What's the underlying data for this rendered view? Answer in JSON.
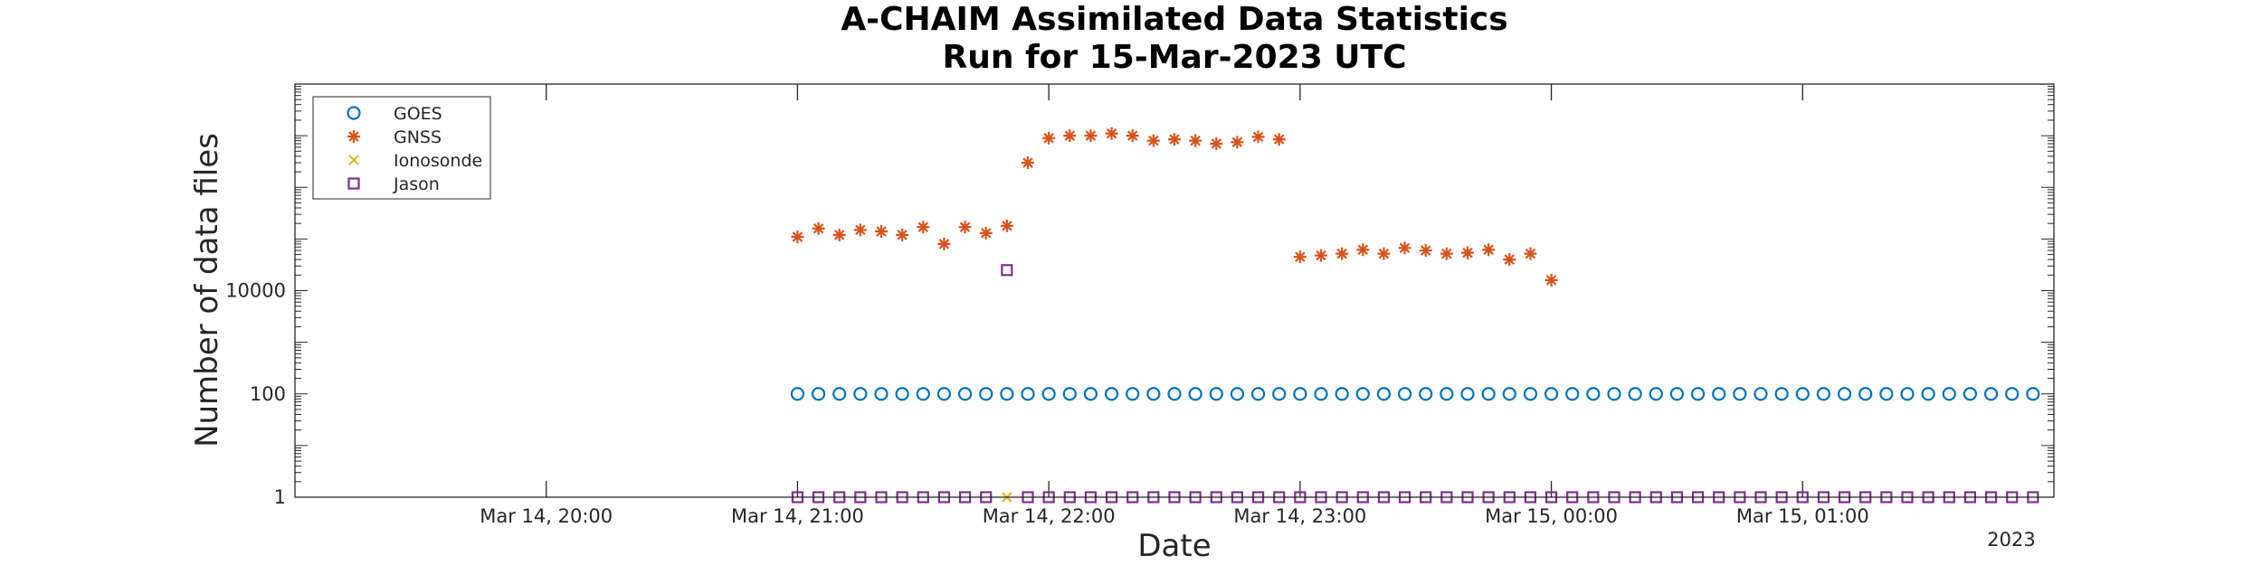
{
  "chart_data": {
    "type": "scatter",
    "title": "A-CHAIM Assimilated Data Statistics",
    "subtitle": "Run for 15-Mar-2023 UTC",
    "xlabel": "Date",
    "ylabel": "Number of data files",
    "x_secondary_label": "2023",
    "y_scale": "log",
    "y_ticks": [
      {
        "value": 1,
        "label": "1"
      },
      {
        "value": 100,
        "label": "100"
      },
      {
        "value": 10000,
        "label": "10000"
      }
    ],
    "x_ticks": [
      {
        "value": "2023-03-14 20:00",
        "label": "Mar 14, 20:00"
      },
      {
        "value": "2023-03-14 21:00",
        "label": "Mar 14, 21:00"
      },
      {
        "value": "2023-03-14 22:00",
        "label": "Mar 14, 22:00"
      },
      {
        "value": "2023-03-14 23:00",
        "label": "Mar 14, 23:00"
      },
      {
        "value": "2023-03-15 00:00",
        "label": "Mar 15, 00:00"
      },
      {
        "value": "2023-03-15 01:00",
        "label": "Mar 15, 01:00"
      }
    ],
    "xlim": [
      "2023-03-14 19:00",
      "2023-03-15 02:00"
    ],
    "ylim": [
      1,
      100000000
    ],
    "grid": false,
    "legend_position": "top-left",
    "series": [
      {
        "name": "GOES",
        "marker": "circle",
        "color": "#0072BD",
        "points": [
          {
            "x": "2023-03-14 21:00",
            "y": 100
          },
          {
            "x": "2023-03-14 21:05",
            "y": 100
          },
          {
            "x": "2023-03-14 21:10",
            "y": 100
          },
          {
            "x": "2023-03-14 21:15",
            "y": 100
          },
          {
            "x": "2023-03-14 21:20",
            "y": 100
          },
          {
            "x": "2023-03-14 21:25",
            "y": 100
          },
          {
            "x": "2023-03-14 21:30",
            "y": 100
          },
          {
            "x": "2023-03-14 21:35",
            "y": 100
          },
          {
            "x": "2023-03-14 21:40",
            "y": 100
          },
          {
            "x": "2023-03-14 21:45",
            "y": 100
          },
          {
            "x": "2023-03-14 21:50",
            "y": 100
          },
          {
            "x": "2023-03-14 21:55",
            "y": 100
          },
          {
            "x": "2023-03-14 22:00",
            "y": 100
          },
          {
            "x": "2023-03-14 22:05",
            "y": 100
          },
          {
            "x": "2023-03-14 22:10",
            "y": 100
          },
          {
            "x": "2023-03-14 22:15",
            "y": 100
          },
          {
            "x": "2023-03-14 22:20",
            "y": 100
          },
          {
            "x": "2023-03-14 22:25",
            "y": 100
          },
          {
            "x": "2023-03-14 22:30",
            "y": 100
          },
          {
            "x": "2023-03-14 22:35",
            "y": 100
          },
          {
            "x": "2023-03-14 22:40",
            "y": 100
          },
          {
            "x": "2023-03-14 22:45",
            "y": 100
          },
          {
            "x": "2023-03-14 22:50",
            "y": 100
          },
          {
            "x": "2023-03-14 22:55",
            "y": 100
          },
          {
            "x": "2023-03-14 23:00",
            "y": 100
          },
          {
            "x": "2023-03-14 23:05",
            "y": 100
          },
          {
            "x": "2023-03-14 23:10",
            "y": 100
          },
          {
            "x": "2023-03-14 23:15",
            "y": 100
          },
          {
            "x": "2023-03-14 23:20",
            "y": 100
          },
          {
            "x": "2023-03-14 23:25",
            "y": 100
          },
          {
            "x": "2023-03-14 23:30",
            "y": 100
          },
          {
            "x": "2023-03-14 23:35",
            "y": 100
          },
          {
            "x": "2023-03-14 23:40",
            "y": 100
          },
          {
            "x": "2023-03-14 23:45",
            "y": 100
          },
          {
            "x": "2023-03-14 23:50",
            "y": 100
          },
          {
            "x": "2023-03-14 23:55",
            "y": 100
          },
          {
            "x": "2023-03-15 00:00",
            "y": 100
          },
          {
            "x": "2023-03-15 00:05",
            "y": 100
          },
          {
            "x": "2023-03-15 00:10",
            "y": 100
          },
          {
            "x": "2023-03-15 00:15",
            "y": 100
          },
          {
            "x": "2023-03-15 00:20",
            "y": 100
          },
          {
            "x": "2023-03-15 00:25",
            "y": 100
          },
          {
            "x": "2023-03-15 00:30",
            "y": 100
          },
          {
            "x": "2023-03-15 00:35",
            "y": 100
          },
          {
            "x": "2023-03-15 00:40",
            "y": 100
          },
          {
            "x": "2023-03-15 00:45",
            "y": 100
          },
          {
            "x": "2023-03-15 00:50",
            "y": 100
          },
          {
            "x": "2023-03-15 00:55",
            "y": 100
          },
          {
            "x": "2023-03-15 01:00",
            "y": 100
          },
          {
            "x": "2023-03-15 01:05",
            "y": 100
          },
          {
            "x": "2023-03-15 01:10",
            "y": 100
          },
          {
            "x": "2023-03-15 01:15",
            "y": 100
          },
          {
            "x": "2023-03-15 01:20",
            "y": 100
          },
          {
            "x": "2023-03-15 01:25",
            "y": 100
          },
          {
            "x": "2023-03-15 01:30",
            "y": 100
          },
          {
            "x": "2023-03-15 01:35",
            "y": 100
          },
          {
            "x": "2023-03-15 01:40",
            "y": 100
          },
          {
            "x": "2023-03-15 01:45",
            "y": 100
          },
          {
            "x": "2023-03-15 01:50",
            "y": 100
          },
          {
            "x": "2023-03-15 01:55",
            "y": 100
          }
        ]
      },
      {
        "name": "GNSS",
        "marker": "asterisk",
        "color": "#D95319",
        "points": [
          {
            "x": "2023-03-14 21:00",
            "y": 110000
          },
          {
            "x": "2023-03-14 21:05",
            "y": 160000
          },
          {
            "x": "2023-03-14 21:10",
            "y": 120000
          },
          {
            "x": "2023-03-14 21:15",
            "y": 150000
          },
          {
            "x": "2023-03-14 21:20",
            "y": 140000
          },
          {
            "x": "2023-03-14 21:25",
            "y": 120000
          },
          {
            "x": "2023-03-14 21:30",
            "y": 170000
          },
          {
            "x": "2023-03-14 21:35",
            "y": 80000
          },
          {
            "x": "2023-03-14 21:40",
            "y": 170000
          },
          {
            "x": "2023-03-14 21:45",
            "y": 130000
          },
          {
            "x": "2023-03-14 21:50",
            "y": 180000
          },
          {
            "x": "2023-03-14 21:55",
            "y": 3000000
          },
          {
            "x": "2023-03-14 22:00",
            "y": 9000000
          },
          {
            "x": "2023-03-14 22:05",
            "y": 10000000
          },
          {
            "x": "2023-03-14 22:10",
            "y": 10000000
          },
          {
            "x": "2023-03-14 22:15",
            "y": 11000000
          },
          {
            "x": "2023-03-14 22:20",
            "y": 10000000
          },
          {
            "x": "2023-03-14 22:25",
            "y": 8000000
          },
          {
            "x": "2023-03-14 22:30",
            "y": 8500000
          },
          {
            "x": "2023-03-14 22:35",
            "y": 8000000
          },
          {
            "x": "2023-03-14 22:40",
            "y": 7000000
          },
          {
            "x": "2023-03-14 22:45",
            "y": 7500000
          },
          {
            "x": "2023-03-14 22:50",
            "y": 9500000
          },
          {
            "x": "2023-03-14 22:55",
            "y": 8500000
          },
          {
            "x": "2023-03-14 23:00",
            "y": 45000
          },
          {
            "x": "2023-03-14 23:05",
            "y": 48000
          },
          {
            "x": "2023-03-14 23:10",
            "y": 52000
          },
          {
            "x": "2023-03-14 23:15",
            "y": 62000
          },
          {
            "x": "2023-03-14 23:20",
            "y": 52000
          },
          {
            "x": "2023-03-14 23:25",
            "y": 67000
          },
          {
            "x": "2023-03-14 23:30",
            "y": 60000
          },
          {
            "x": "2023-03-14 23:35",
            "y": 52000
          },
          {
            "x": "2023-03-14 23:40",
            "y": 54000
          },
          {
            "x": "2023-03-14 23:45",
            "y": 62000
          },
          {
            "x": "2023-03-14 23:50",
            "y": 40000
          },
          {
            "x": "2023-03-14 23:55",
            "y": 52000
          },
          {
            "x": "2023-03-15 00:00",
            "y": 16000
          }
        ]
      },
      {
        "name": "Ionosonde",
        "marker": "x",
        "color": "#EDB120",
        "points": [
          {
            "x": "2023-03-14 21:50",
            "y": 1
          }
        ]
      },
      {
        "name": "Jason",
        "marker": "square",
        "color": "#7E2F8E",
        "points": [
          {
            "x": "2023-03-14 21:50",
            "y": 25000
          },
          {
            "x": "2023-03-14 21:00",
            "y": 1
          },
          {
            "x": "2023-03-14 21:05",
            "y": 1
          },
          {
            "x": "2023-03-14 21:10",
            "y": 1
          },
          {
            "x": "2023-03-14 21:15",
            "y": 1
          },
          {
            "x": "2023-03-14 21:20",
            "y": 1
          },
          {
            "x": "2023-03-14 21:25",
            "y": 1
          },
          {
            "x": "2023-03-14 21:30",
            "y": 1
          },
          {
            "x": "2023-03-14 21:35",
            "y": 1
          },
          {
            "x": "2023-03-14 21:40",
            "y": 1
          },
          {
            "x": "2023-03-14 21:45",
            "y": 1
          },
          {
            "x": "2023-03-14 21:55",
            "y": 1
          },
          {
            "x": "2023-03-14 22:00",
            "y": 1
          },
          {
            "x": "2023-03-14 22:05",
            "y": 1
          },
          {
            "x": "2023-03-14 22:10",
            "y": 1
          },
          {
            "x": "2023-03-14 22:15",
            "y": 1
          },
          {
            "x": "2023-03-14 22:20",
            "y": 1
          },
          {
            "x": "2023-03-14 22:25",
            "y": 1
          },
          {
            "x": "2023-03-14 22:30",
            "y": 1
          },
          {
            "x": "2023-03-14 22:35",
            "y": 1
          },
          {
            "x": "2023-03-14 22:40",
            "y": 1
          },
          {
            "x": "2023-03-14 22:45",
            "y": 1
          },
          {
            "x": "2023-03-14 22:50",
            "y": 1
          },
          {
            "x": "2023-03-14 22:55",
            "y": 1
          },
          {
            "x": "2023-03-14 23:00",
            "y": 1
          },
          {
            "x": "2023-03-14 23:05",
            "y": 1
          },
          {
            "x": "2023-03-14 23:10",
            "y": 1
          },
          {
            "x": "2023-03-14 23:15",
            "y": 1
          },
          {
            "x": "2023-03-14 23:20",
            "y": 1
          },
          {
            "x": "2023-03-14 23:25",
            "y": 1
          },
          {
            "x": "2023-03-14 23:30",
            "y": 1
          },
          {
            "x": "2023-03-14 23:35",
            "y": 1
          },
          {
            "x": "2023-03-14 23:40",
            "y": 1
          },
          {
            "x": "2023-03-14 23:45",
            "y": 1
          },
          {
            "x": "2023-03-14 23:50",
            "y": 1
          },
          {
            "x": "2023-03-14 23:55",
            "y": 1
          },
          {
            "x": "2023-03-15 00:00",
            "y": 1
          },
          {
            "x": "2023-03-15 00:05",
            "y": 1
          },
          {
            "x": "2023-03-15 00:10",
            "y": 1
          },
          {
            "x": "2023-03-15 00:15",
            "y": 1
          },
          {
            "x": "2023-03-15 00:20",
            "y": 1
          },
          {
            "x": "2023-03-15 00:25",
            "y": 1
          },
          {
            "x": "2023-03-15 00:30",
            "y": 1
          },
          {
            "x": "2023-03-15 00:35",
            "y": 1
          },
          {
            "x": "2023-03-15 00:40",
            "y": 1
          },
          {
            "x": "2023-03-15 00:45",
            "y": 1
          },
          {
            "x": "2023-03-15 00:50",
            "y": 1
          },
          {
            "x": "2023-03-15 00:55",
            "y": 1
          },
          {
            "x": "2023-03-15 01:00",
            "y": 1
          },
          {
            "x": "2023-03-15 01:05",
            "y": 1
          },
          {
            "x": "2023-03-15 01:10",
            "y": 1
          },
          {
            "x": "2023-03-15 01:15",
            "y": 1
          },
          {
            "x": "2023-03-15 01:20",
            "y": 1
          },
          {
            "x": "2023-03-15 01:25",
            "y": 1
          },
          {
            "x": "2023-03-15 01:30",
            "y": 1
          },
          {
            "x": "2023-03-15 01:35",
            "y": 1
          },
          {
            "x": "2023-03-15 01:40",
            "y": 1
          },
          {
            "x": "2023-03-15 01:45",
            "y": 1
          },
          {
            "x": "2023-03-15 01:50",
            "y": 1
          },
          {
            "x": "2023-03-15 01:55",
            "y": 1
          }
        ]
      }
    ]
  }
}
